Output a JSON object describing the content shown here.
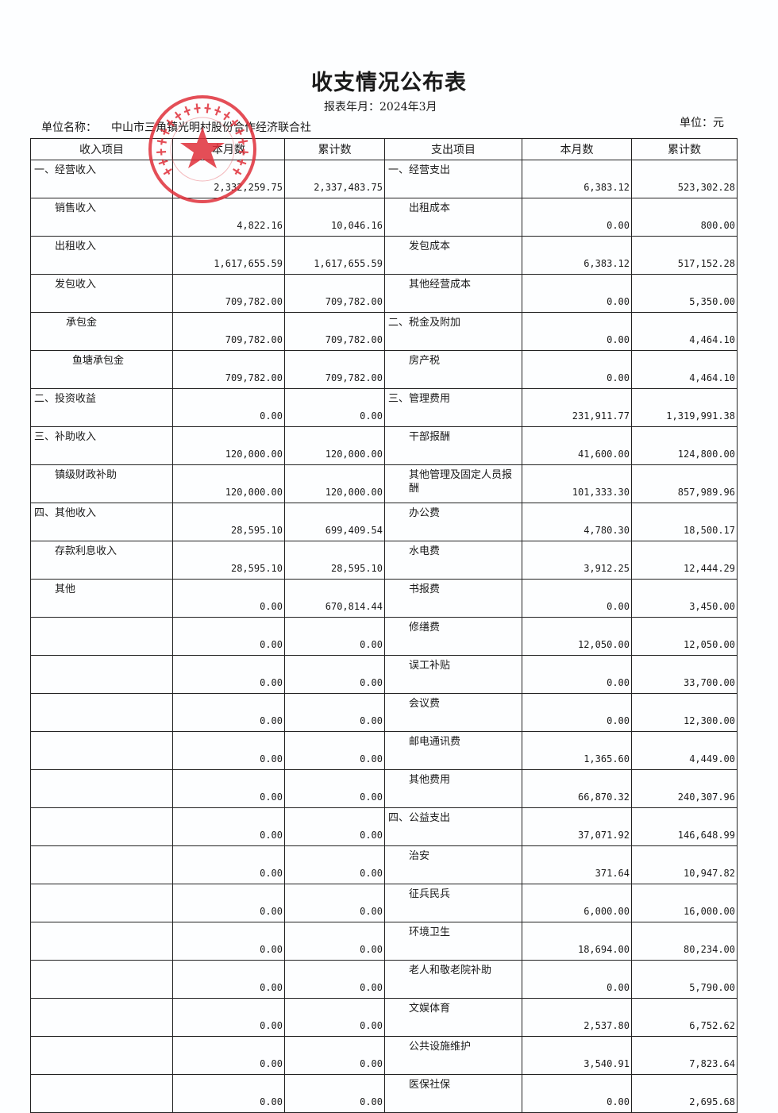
{
  "title": "收支情况公布表",
  "period_label": "报表年月：2024年3月",
  "unit_name_label": "单位名称：",
  "unit_name": "中山市三角镇光明村股份合作经济联合社",
  "currency_unit": "单位：元",
  "stamp": {
    "text": "中山市三角镇光明村股份合作经济联合社",
    "color": "#e0303a"
  },
  "headers": [
    "收入项目",
    "本月数",
    "累计数",
    "支出项目",
    "本月数",
    "累计数"
  ],
  "income": [
    {
      "item": "一、经营收入",
      "level": 0,
      "month": "2,332,259.75",
      "total": "2,337,483.75"
    },
    {
      "item": "销售收入",
      "level": 1,
      "month": "4,822.16",
      "total": "10,046.16"
    },
    {
      "item": "出租收入",
      "level": 1,
      "month": "1,617,655.59",
      "total": "1,617,655.59"
    },
    {
      "item": "发包收入",
      "level": 1,
      "month": "709,782.00",
      "total": "709,782.00"
    },
    {
      "item": "承包金",
      "level": 2,
      "month": "709,782.00",
      "total": "709,782.00"
    },
    {
      "item": "鱼塘承包金",
      "level": 3,
      "month": "709,782.00",
      "total": "709,782.00"
    },
    {
      "item": "二、投资收益",
      "level": 0,
      "month": "0.00",
      "total": "0.00"
    },
    {
      "item": "三、补助收入",
      "level": 0,
      "month": "120,000.00",
      "total": "120,000.00"
    },
    {
      "item": "镇级财政补助",
      "level": 1,
      "month": "120,000.00",
      "total": "120,000.00"
    },
    {
      "item": "四、其他收入",
      "level": 0,
      "month": "28,595.10",
      "total": "699,409.54"
    },
    {
      "item": "存款利息收入",
      "level": 1,
      "month": "28,595.10",
      "total": "28,595.10"
    },
    {
      "item": "其他",
      "level": 1,
      "month": "0.00",
      "total": "670,814.44"
    },
    {
      "item": "",
      "level": 0,
      "month": "0.00",
      "total": "0.00"
    },
    {
      "item": "",
      "level": 0,
      "month": "0.00",
      "total": "0.00"
    },
    {
      "item": "",
      "level": 0,
      "month": "0.00",
      "total": "0.00"
    },
    {
      "item": "",
      "level": 0,
      "month": "0.00",
      "total": "0.00"
    },
    {
      "item": "",
      "level": 0,
      "month": "0.00",
      "total": "0.00"
    },
    {
      "item": "",
      "level": 0,
      "month": "0.00",
      "total": "0.00"
    },
    {
      "item": "",
      "level": 0,
      "month": "0.00",
      "total": "0.00"
    },
    {
      "item": "",
      "level": 0,
      "month": "0.00",
      "total": "0.00"
    },
    {
      "item": "",
      "level": 0,
      "month": "0.00",
      "total": "0.00"
    },
    {
      "item": "",
      "level": 0,
      "month": "0.00",
      "total": "0.00"
    },
    {
      "item": "",
      "level": 0,
      "month": "0.00",
      "total": "0.00"
    },
    {
      "item": "",
      "level": 0,
      "month": "0.00",
      "total": "0.00"
    },
    {
      "item": "",
      "level": 0,
      "month": "0.00",
      "total": "0.00"
    }
  ],
  "expense": [
    {
      "item": "一、经营支出",
      "level": 0,
      "month": "6,383.12",
      "total": "523,302.28"
    },
    {
      "item": "出租成本",
      "level": 1,
      "month": "0.00",
      "total": "800.00"
    },
    {
      "item": "发包成本",
      "level": 1,
      "month": "6,383.12",
      "total": "517,152.28"
    },
    {
      "item": "其他经营成本",
      "level": 1,
      "month": "0.00",
      "total": "5,350.00"
    },
    {
      "item": "二、税金及附加",
      "level": 0,
      "month": "0.00",
      "total": "4,464.10"
    },
    {
      "item": "房产税",
      "level": 1,
      "month": "0.00",
      "total": "4,464.10"
    },
    {
      "item": "三、管理费用",
      "level": 0,
      "month": "231,911.77",
      "total": "1,319,991.38"
    },
    {
      "item": "干部报酬",
      "level": 1,
      "month": "41,600.00",
      "total": "124,800.00"
    },
    {
      "item": "其他管理及固定人员报酬",
      "level": 1,
      "month": "101,333.30",
      "total": "857,989.96"
    },
    {
      "item": "办公费",
      "level": 1,
      "month": "4,780.30",
      "total": "18,500.17"
    },
    {
      "item": "水电费",
      "level": 1,
      "month": "3,912.25",
      "total": "12,444.29"
    },
    {
      "item": "书报费",
      "level": 1,
      "month": "0.00",
      "total": "3,450.00"
    },
    {
      "item": "修缮费",
      "level": 1,
      "month": "12,050.00",
      "total": "12,050.00"
    },
    {
      "item": "误工补贴",
      "level": 1,
      "month": "0.00",
      "total": "33,700.00"
    },
    {
      "item": "会议费",
      "level": 1,
      "month": "0.00",
      "total": "12,300.00"
    },
    {
      "item": "邮电通讯费",
      "level": 1,
      "month": "1,365.60",
      "total": "4,449.00"
    },
    {
      "item": "其他费用",
      "level": 1,
      "month": "66,870.32",
      "total": "240,307.96"
    },
    {
      "item": "四、公益支出",
      "level": 0,
      "month": "37,071.92",
      "total": "146,648.99"
    },
    {
      "item": "治安",
      "level": 1,
      "month": "371.64",
      "total": "10,947.82"
    },
    {
      "item": "征兵民兵",
      "level": 1,
      "month": "6,000.00",
      "total": "16,000.00"
    },
    {
      "item": "环境卫生",
      "level": 1,
      "month": "18,694.00",
      "total": "80,234.00"
    },
    {
      "item": "老人和敬老院补助",
      "level": 1,
      "month": "0.00",
      "total": "5,790.00"
    },
    {
      "item": "文娱体育",
      "level": 1,
      "month": "2,537.80",
      "total": "6,752.62"
    },
    {
      "item": "公共设施维护",
      "level": 1,
      "month": "3,540.91",
      "total": "7,823.64"
    },
    {
      "item": "医保社保",
      "level": 1,
      "month": "0.00",
      "total": "2,695.68"
    }
  ]
}
